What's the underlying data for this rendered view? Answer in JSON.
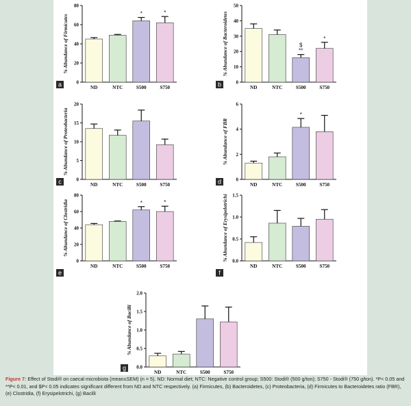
{
  "colors": {
    "ND": "#fcfbe0",
    "NTC": "#d5ebd2",
    "S500": "#c3bee0",
    "S750": "#eccde4",
    "error": "#111111",
    "axis": "#111111",
    "letterBox": "#2a2a2a"
  },
  "chart_data": [
    {
      "id": "a",
      "type": "bar",
      "ylabel": "% Abundance of Firmicutes",
      "categories": [
        "ND",
        "NTC",
        "S500",
        "S750"
      ],
      "values": [
        45,
        49,
        64,
        62
      ],
      "errors": [
        1.5,
        0.8,
        3.5,
        6.5
      ],
      "ylim": [
        0,
        80
      ],
      "yticks": [
        "0",
        "20",
        "40",
        "60",
        "80"
      ],
      "annotations": [
        "",
        "",
        "*",
        "*"
      ]
    },
    {
      "id": "b",
      "type": "bar",
      "ylabel": "% Abundance of Bacteroidetes",
      "categories": [
        "ND",
        "NTC",
        "S500",
        "S750"
      ],
      "values": [
        35,
        31,
        16,
        22
      ],
      "errors": [
        3,
        3,
        2,
        4
      ],
      "ylim": [
        0,
        50
      ],
      "yticks": [
        "0",
        "10",
        "20",
        "30",
        "40",
        "50"
      ],
      "annotations": [
        "",
        "",
        "$\n**",
        "*"
      ]
    },
    {
      "id": "c",
      "type": "bar",
      "ylabel": "% Abundance of Proteobacteria",
      "categories": [
        "ND",
        "NTC",
        "S500",
        "S750"
      ],
      "values": [
        13.5,
        11.7,
        15.5,
        9.2
      ],
      "errors": [
        1.2,
        1.4,
        2.9,
        1.5
      ],
      "ylim": [
        0,
        20
      ],
      "yticks": [
        "0",
        "5",
        "10",
        "15",
        "20"
      ],
      "annotations": [
        "",
        "",
        "",
        ""
      ]
    },
    {
      "id": "d",
      "type": "bar",
      "ylabel": "% Abundance of FBR",
      "categories": [
        "ND",
        "NTC",
        "S500",
        "S750"
      ],
      "values": [
        1.3,
        1.8,
        4.15,
        3.8
      ],
      "errors": [
        0.15,
        0.3,
        0.7,
        1.3
      ],
      "ylim": [
        0,
        6
      ],
      "yticks": [
        "0",
        "2",
        "4",
        "6"
      ],
      "annotations": [
        "",
        "",
        "*",
        ""
      ]
    },
    {
      "id": "e",
      "type": "bar",
      "ylabel": "% Abundance of Clostridia",
      "categories": [
        "ND",
        "NTC",
        "S500",
        "S750"
      ],
      "values": [
        44,
        48,
        62,
        60
      ],
      "errors": [
        1.5,
        0.5,
        4,
        6.5
      ],
      "ylim": [
        0,
        80
      ],
      "yticks": [
        "0",
        "20",
        "40",
        "60",
        "80"
      ],
      "annotations": [
        "",
        "",
        "*",
        "*"
      ]
    },
    {
      "id": "f",
      "type": "bar",
      "ylabel": "% Abundance of Erysipelotrichi",
      "categories": [
        "ND",
        "NTC",
        "S500",
        "S750"
      ],
      "values": [
        0.42,
        0.86,
        0.79,
        0.95
      ],
      "errors": [
        0.13,
        0.29,
        0.18,
        0.22
      ],
      "ylim": [
        0,
        1.5
      ],
      "yticks": [
        "0.0",
        "0.5",
        "1.0",
        "1.5"
      ],
      "annotations": [
        "",
        "",
        "",
        ""
      ]
    },
    {
      "id": "g",
      "type": "bar",
      "ylabel": "% Abundance of Bacilli",
      "categories": [
        "ND",
        "NTC",
        "S500",
        "S750"
      ],
      "values": [
        0.3,
        0.35,
        1.3,
        1.22
      ],
      "errors": [
        0.07,
        0.07,
        0.35,
        0.4
      ],
      "ylim": [
        0,
        2.0
      ],
      "yticks": [
        "0.0",
        "0.5",
        "1.0",
        "1.5",
        "2.0"
      ],
      "annotations": [
        "",
        "",
        "",
        ""
      ]
    }
  ],
  "caption": {
    "label": "Figure 7:",
    "text": " Effect of Stodi® on caecal microbiota (mean±SEM) (n = 5). ND: Normal diet; NTC: Negative control group; S500: Stodi® (500 g/ton); S750 - Stodi® (750 g/ton). *P< 0.05 and **P< 0.01, and $P< 0.05 indicates significant different from ND and NTC respectively. (a) Firmicutes, (b) Bacteroidetes, (c) Proteobacteria, (d) Firmicutes to Bacteroidetes ratio (FBR), (e) Clostridia, (f) Erysipelotrichi, (g) Bacilli"
  }
}
